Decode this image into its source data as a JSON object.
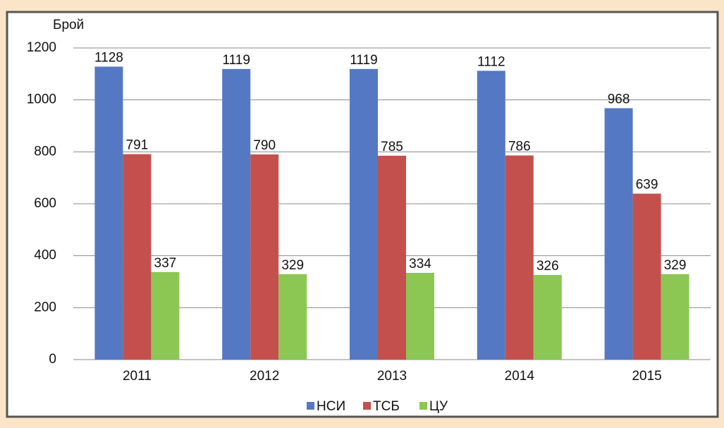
{
  "chart_data": {
    "type": "bar",
    "y_label": "Брой",
    "categories": [
      "2011",
      "2012",
      "2013",
      "2014",
      "2015"
    ],
    "series": [
      {
        "name": "НСИ",
        "color": "#5578c2",
        "values": [
          1128,
          1119,
          1119,
          1112,
          968
        ]
      },
      {
        "name": "ТСБ",
        "color": "#c4504d",
        "values": [
          791,
          790,
          785,
          786,
          639
        ]
      },
      {
        "name": "ЦУ",
        "color": "#8cc753",
        "values": [
          337,
          329,
          334,
          326,
          329
        ]
      }
    ],
    "ylim": [
      0,
      1200
    ],
    "yticks": [
      0,
      200,
      400,
      600,
      800,
      1000,
      1200
    ],
    "grid": true,
    "legend": "bottom"
  }
}
